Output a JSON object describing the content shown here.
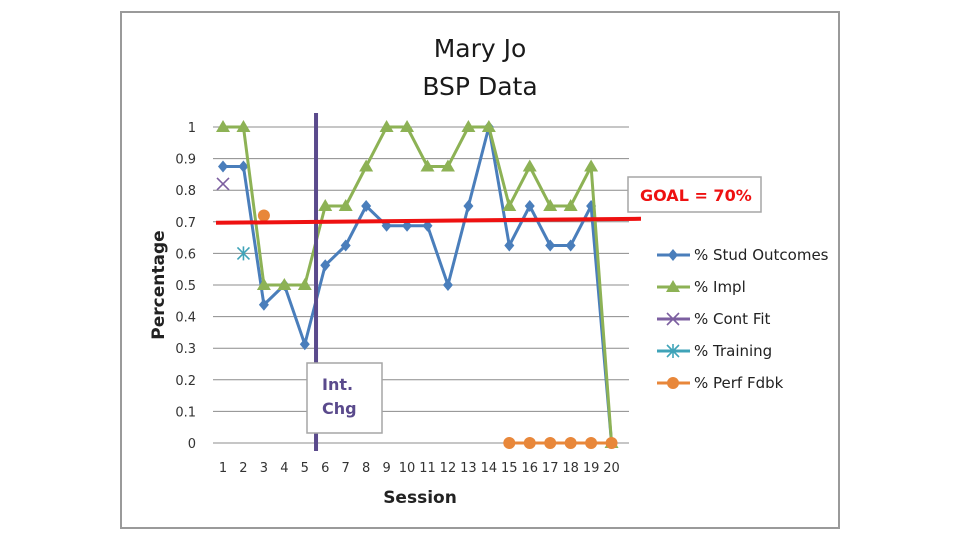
{
  "chart_data": {
    "type": "line",
    "title_lines": [
      "Mary Jo",
      "BSP Data"
    ],
    "xlabel": "Session",
    "ylabel": "Percentage",
    "x": [
      1,
      2,
      3,
      4,
      5,
      6,
      7,
      8,
      9,
      10,
      11,
      12,
      13,
      14,
      15,
      16,
      17,
      18,
      19,
      20
    ],
    "xlim": [
      1,
      20
    ],
    "ylim": [
      0,
      1
    ],
    "yticks": [
      0,
      0.1,
      0.2,
      0.3,
      0.4,
      0.5,
      0.6,
      0.7,
      0.8,
      0.9,
      1
    ],
    "ytick_labels": [
      "0",
      "0.1",
      "0.2",
      "0.3",
      "0.4",
      "0.5",
      "0.6",
      "0.7",
      "0.8",
      "0.9",
      "1"
    ],
    "grid": true,
    "legend_position": "right",
    "series": [
      {
        "name": "% Stud Outcomes",
        "color": "#4a7ebb",
        "marker": "diamond",
        "values": [
          0.875,
          0.875,
          0.4375,
          0.5,
          0.3125,
          0.5625,
          0.625,
          0.75,
          0.6875,
          0.6875,
          0.6875,
          0.5,
          0.75,
          1.0,
          0.625,
          0.75,
          0.625,
          0.625,
          0.75,
          0.0
        ]
      },
      {
        "name": "% Impl",
        "color": "#8db255",
        "marker": "triangle",
        "values": [
          1.0,
          1.0,
          0.5,
          0.5,
          0.5,
          0.75,
          0.75,
          0.875,
          1.0,
          1.0,
          0.875,
          0.875,
          1.0,
          1.0,
          0.75,
          0.875,
          0.75,
          0.75,
          0.875,
          0.0
        ]
      },
      {
        "name": "% Cont Fit",
        "color": "#7c5fa0",
        "marker": "x",
        "values": [
          0.82,
          null,
          null,
          null,
          null,
          null,
          null,
          null,
          null,
          null,
          null,
          null,
          null,
          null,
          null,
          null,
          null,
          null,
          null,
          null
        ]
      },
      {
        "name": "% Training",
        "color": "#3fa3b8",
        "marker": "star",
        "values": [
          null,
          0.6,
          null,
          null,
          null,
          null,
          null,
          null,
          null,
          null,
          null,
          null,
          null,
          null,
          null,
          null,
          null,
          null,
          null,
          null
        ]
      },
      {
        "name": "% Perf Fdbk",
        "color": "#e8873a",
        "marker": "circle",
        "values": [
          null,
          null,
          0.72,
          null,
          null,
          null,
          null,
          null,
          null,
          null,
          null,
          null,
          null,
          null,
          0,
          0,
          0,
          0,
          0,
          0
        ]
      }
    ],
    "goal_line": {
      "value": 0.7,
      "color": "#ee1111",
      "label": "GOAL = 70%"
    },
    "phase_change": {
      "x": 5.5,
      "color": "#5a4a8c",
      "label_lines": [
        "Int.",
        "Chg"
      ]
    }
  }
}
